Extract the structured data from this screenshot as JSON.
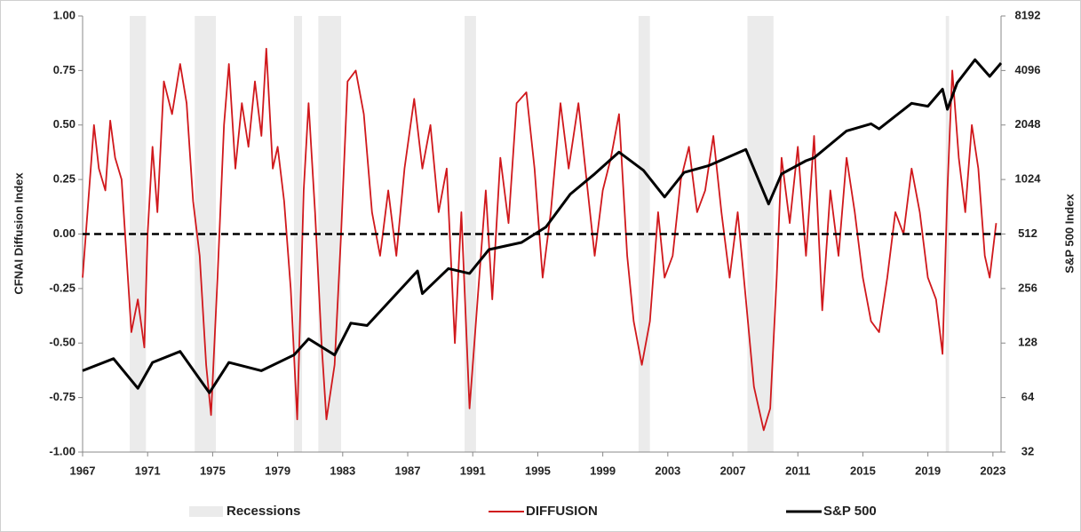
{
  "chart_data": {
    "type": "line",
    "xlim": [
      1967,
      2023.5
    ],
    "xticks": [
      1967,
      1971,
      1975,
      1979,
      1983,
      1987,
      1991,
      1995,
      1999,
      2003,
      2007,
      2011,
      2015,
      2019,
      2023
    ],
    "ylim": [
      -1,
      1
    ],
    "yticks": [
      {
        "value": -1,
        "label": "-1.00"
      },
      {
        "value": -0.75,
        "label": "-0.75"
      },
      {
        "value": -0.5,
        "label": "-0.50"
      },
      {
        "value": -0.25,
        "label": "-0.25"
      },
      {
        "value": 0,
        "label": "0.00"
      },
      {
        "value": 0.25,
        "label": "0.25"
      },
      {
        "value": 0.5,
        "label": "0.50"
      },
      {
        "value": 0.75,
        "label": "0.75"
      },
      {
        "value": 1,
        "label": "1.00"
      }
    ],
    "ylabel": "CFNAI Diffusion Index",
    "y2lim": [
      32,
      8192
    ],
    "y2ticks": [
      32,
      64,
      128,
      256,
      512,
      1024,
      2048,
      4096,
      8192
    ],
    "y2log": true,
    "y2label": "S&P 500 Index",
    "hline": 0,
    "legend": "bottom",
    "recessions": {
      "name": "Recessions",
      "color": "#ebebeb",
      "periods": [
        [
          1969.9,
          1970.9
        ],
        [
          1973.9,
          1975.2
        ],
        [
          1980.0,
          1980.5
        ],
        [
          1981.5,
          1982.9
        ],
        [
          1990.5,
          1991.2
        ],
        [
          2001.2,
          2001.9
        ],
        [
          2007.9,
          2009.5
        ],
        [
          2020.1,
          2020.3
        ]
      ]
    },
    "series": [
      {
        "name": "DIFFUSION",
        "color": "#d0181c",
        "axis": "y",
        "x": [
          1967.0,
          1967.3,
          1967.7,
          1968.0,
          1968.4,
          1968.7,
          1969.0,
          1969.4,
          1969.7,
          1970.0,
          1970.4,
          1970.8,
          1971.0,
          1971.3,
          1971.6,
          1972.0,
          1972.5,
          1973.0,
          1973.4,
          1973.8,
          1974.2,
          1974.6,
          1974.9,
          1975.3,
          1975.7,
          1976.0,
          1976.4,
          1976.8,
          1977.2,
          1977.6,
          1978.0,
          1978.3,
          1978.7,
          1979.0,
          1979.4,
          1979.8,
          1980.2,
          1980.6,
          1980.9,
          1981.3,
          1981.7,
          1982.0,
          1982.5,
          1982.9,
          1983.3,
          1983.8,
          1984.3,
          1984.8,
          1985.3,
          1985.8,
          1986.3,
          1986.8,
          1987.4,
          1987.9,
          1988.4,
          1988.9,
          1989.4,
          1989.9,
          1990.3,
          1990.8,
          1991.3,
          1991.8,
          1992.2,
          1992.7,
          1993.2,
          1993.7,
          1994.3,
          1994.8,
          1995.3,
          1995.8,
          1996.4,
          1996.9,
          1997.5,
          1998.0,
          1998.5,
          1999.0,
          1999.5,
          2000.0,
          2000.5,
          2000.9,
          2001.4,
          2001.9,
          2002.4,
          2002.8,
          2003.3,
          2003.8,
          2004.3,
          2004.8,
          2005.3,
          2005.8,
          2006.3,
          2006.8,
          2007.3,
          2007.8,
          2008.3,
          2008.9,
          2009.3,
          2009.7,
          2010.0,
          2010.5,
          2011.0,
          2011.5,
          2012.0,
          2012.5,
          2013.0,
          2013.5,
          2014.0,
          2014.5,
          2015.0,
          2015.5,
          2016.0,
          2016.5,
          2017.0,
          2017.5,
          2018.0,
          2018.5,
          2019.0,
          2019.5,
          2019.9,
          2020.2,
          2020.5,
          2020.9,
          2021.3,
          2021.7,
          2022.1,
          2022.5,
          2022.8,
          2023.2
        ],
        "values": [
          -0.2,
          0.1,
          0.5,
          0.3,
          0.2,
          0.52,
          0.35,
          0.25,
          -0.1,
          -0.45,
          -0.3,
          -0.52,
          0.0,
          0.4,
          0.1,
          0.7,
          0.55,
          0.78,
          0.6,
          0.15,
          -0.1,
          -0.6,
          -0.83,
          -0.2,
          0.5,
          0.78,
          0.3,
          0.6,
          0.4,
          0.7,
          0.45,
          0.85,
          0.3,
          0.4,
          0.15,
          -0.25,
          -0.85,
          0.2,
          0.6,
          0.1,
          -0.5,
          -0.85,
          -0.6,
          0.0,
          0.7,
          0.75,
          0.55,
          0.1,
          -0.1,
          0.2,
          -0.1,
          0.3,
          0.62,
          0.3,
          0.5,
          0.1,
          0.3,
          -0.5,
          0.1,
          -0.8,
          -0.3,
          0.2,
          -0.3,
          0.35,
          0.05,
          0.6,
          0.65,
          0.3,
          -0.2,
          0.1,
          0.6,
          0.3,
          0.6,
          0.25,
          -0.1,
          0.2,
          0.35,
          0.55,
          -0.1,
          -0.4,
          -0.6,
          -0.4,
          0.1,
          -0.2,
          -0.1,
          0.25,
          0.4,
          0.1,
          0.2,
          0.45,
          0.1,
          -0.2,
          0.1,
          -0.3,
          -0.7,
          -0.9,
          -0.8,
          -0.2,
          0.35,
          0.05,
          0.4,
          -0.1,
          0.45,
          -0.35,
          0.2,
          -0.1,
          0.35,
          0.1,
          -0.2,
          -0.4,
          -0.45,
          -0.2,
          0.1,
          0.0,
          0.3,
          0.1,
          -0.2,
          -0.3,
          -0.55,
          0.2,
          0.75,
          0.35,
          0.1,
          0.5,
          0.3,
          -0.1,
          -0.2,
          0.05
        ]
      },
      {
        "name": "S&P 500",
        "color": "#000000",
        "axis": "y2",
        "x": [
          1967.0,
          1968.9,
          1970.4,
          1971.3,
          1973.0,
          1974.8,
          1976.0,
          1978.0,
          1980.0,
          1980.9,
          1982.5,
          1983.5,
          1984.5,
          1987.6,
          1987.9,
          1989.5,
          1990.8,
          1992.0,
          1994.0,
          1995.5,
          1997.0,
          1998.5,
          2000.0,
          2001.5,
          2002.8,
          2004.0,
          2005.5,
          2007.8,
          2009.2,
          2010.0,
          2011.5,
          2012.0,
          2014.0,
          2015.5,
          2016.0,
          2018.0,
          2019.0,
          2019.9,
          2020.2,
          2020.8,
          2021.9,
          2022.8,
          2023.5
        ],
        "values": [
          90,
          105,
          72,
          100,
          115,
          68,
          100,
          90,
          110,
          135,
          110,
          165,
          160,
          320,
          240,
          330,
          310,
          420,
          460,
          560,
          850,
          1100,
          1450,
          1150,
          820,
          1120,
          1220,
          1500,
          750,
          1100,
          1300,
          1350,
          1900,
          2080,
          1950,
          2700,
          2600,
          3230,
          2500,
          3500,
          4700,
          3800,
          4500
        ]
      }
    ]
  }
}
